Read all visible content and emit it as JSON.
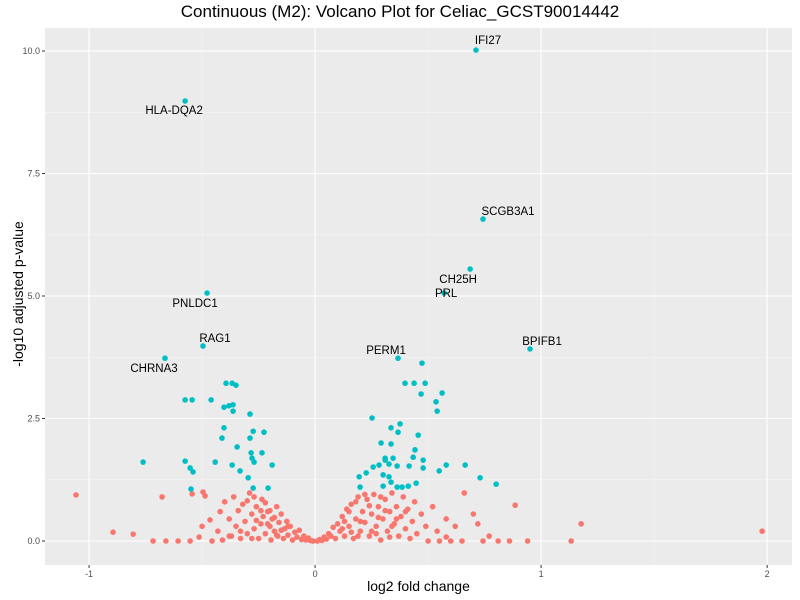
{
  "chart_data": {
    "type": "scatter",
    "title": "Continuous (M2): Volcano Plot for Celiac_GCST90014442",
    "xlabel": "log2 fold change",
    "ylabel": "-log10 adjusted p-value",
    "xlim": [
      -1.195,
      2.11
    ],
    "ylim": [
      -0.49,
      10.47
    ],
    "xticks": [
      -1,
      0,
      1,
      2
    ],
    "xtick_labels": [
      "-1",
      "0",
      "1",
      "2"
    ],
    "yticks": [
      0,
      2.5,
      5,
      7.5,
      10
    ],
    "ytick_labels": [
      "0.0",
      "2.5",
      "5.0",
      "7.5",
      "10.0"
    ],
    "grid": true,
    "colors": {
      "significant": "#00BFC4",
      "not_significant": "#F8766D",
      "panel": "#EBEBEB"
    },
    "labeled_genes": [
      {
        "gene": "IFI27",
        "x": 0.712,
        "y": 10.02
      },
      {
        "gene": "HLA-DQA2",
        "x": -0.575,
        "y": 8.98
      },
      {
        "gene": "SCGB3A1",
        "x": 0.743,
        "y": 6.57
      },
      {
        "gene": "CH25H",
        "x": 0.686,
        "y": 5.55
      },
      {
        "gene": "PRL",
        "x": 0.571,
        "y": 5.06
      },
      {
        "gene": "PNLDC1",
        "x": -0.478,
        "y": 5.06
      },
      {
        "gene": "RAG1",
        "x": -0.496,
        "y": 3.98
      },
      {
        "gene": "BPIFB1",
        "x": 0.951,
        "y": 3.92
      },
      {
        "gene": "PERM1",
        "x": 0.367,
        "y": 3.73
      },
      {
        "gene": "CHRNA3",
        "x": -0.664,
        "y": 3.73
      }
    ],
    "significant_points": [
      [
        -0.394,
        3.22
      ],
      [
        -0.367,
        3.22
      ],
      [
        -0.35,
        3.18
      ],
      [
        -0.575,
        2.88
      ],
      [
        -0.544,
        2.88
      ],
      [
        -0.46,
        2.88
      ],
      [
        -0.403,
        2.73
      ],
      [
        -0.381,
        2.76
      ],
      [
        -0.363,
        2.78
      ],
      [
        -0.363,
        2.65
      ],
      [
        -0.288,
        2.59
      ],
      [
        -0.403,
        2.31
      ],
      [
        -0.274,
        2.24
      ],
      [
        -0.226,
        2.22
      ],
      [
        -0.412,
        2.1
      ],
      [
        -0.288,
        2.1
      ],
      [
        -0.345,
        1.92
      ],
      [
        -0.283,
        1.8
      ],
      [
        -0.235,
        1.8
      ],
      [
        -0.442,
        1.61
      ],
      [
        -0.279,
        1.69
      ],
      [
        -0.27,
        1.61
      ],
      [
        -0.367,
        1.55
      ],
      [
        -0.332,
        1.43
      ],
      [
        -0.19,
        1.55
      ],
      [
        -0.296,
        1.29
      ],
      [
        -0.761,
        1.61
      ],
      [
        -0.575,
        1.63
      ],
      [
        -0.553,
        1.49
      ],
      [
        -0.54,
        1.41
      ],
      [
        -0.549,
        1.06
      ],
      [
        -0.274,
        1.08
      ],
      [
        -0.208,
        1.08
      ],
      [
        0.473,
        3.63
      ],
      [
        0.398,
        3.22
      ],
      [
        0.438,
        3.22
      ],
      [
        0.487,
        3.22
      ],
      [
        0.469,
        3.0
      ],
      [
        0.562,
        3.02
      ],
      [
        0.535,
        2.84
      ],
      [
        0.54,
        2.65
      ],
      [
        0.252,
        2.51
      ],
      [
        0.336,
        2.31
      ],
      [
        0.376,
        2.39
      ],
      [
        0.367,
        2.22
      ],
      [
        0.456,
        2.16
      ],
      [
        0.292,
        2.0
      ],
      [
        0.336,
        1.98
      ],
      [
        0.442,
        1.86
      ],
      [
        0.31,
        1.69
      ],
      [
        0.345,
        1.69
      ],
      [
        0.434,
        1.71
      ],
      [
        0.257,
        1.51
      ],
      [
        0.31,
        1.65
      ],
      [
        0.327,
        1.57
      ],
      [
        0.363,
        1.53
      ],
      [
        0.416,
        1.53
      ],
      [
        0.478,
        1.65
      ],
      [
        0.478,
        1.49
      ],
      [
        0.195,
        1.31
      ],
      [
        0.226,
        1.39
      ],
      [
        0.283,
        1.55
      ],
      [
        0.58,
        1.55
      ],
      [
        0.549,
        1.43
      ],
      [
        0.301,
        1.35
      ],
      [
        0.327,
        1.31
      ],
      [
        0.336,
        1.2
      ],
      [
        0.199,
        1.1
      ],
      [
        0.73,
        1.29
      ],
      [
        0.447,
        1.18
      ],
      [
        0.801,
        1.16
      ],
      [
        0.363,
        1.1
      ],
      [
        0.385,
        1.1
      ],
      [
        0.301,
        1.12
      ],
      [
        0.412,
        1.12
      ],
      [
        0.664,
        1.55
      ]
    ],
    "nonsignificant_points": [
      [
        -1.058,
        0.94
      ],
      [
        -0.894,
        0.18
      ],
      [
        -0.805,
        0.14
      ],
      [
        -0.717,
        0
      ],
      [
        -0.677,
        0.9
      ],
      [
        -0.66,
        0
      ],
      [
        -0.606,
        0
      ],
      [
        -0.553,
        0
      ],
      [
        -0.513,
        0.08
      ],
      [
        -0.456,
        0
      ],
      [
        -0.487,
        0.92
      ],
      [
        -0.544,
        0.96
      ],
      [
        -0.496,
        1.0
      ],
      [
        -0.465,
        0.43
      ],
      [
        -0.5,
        0.3
      ],
      [
        -0.42,
        0.6
      ],
      [
        -0.43,
        0.2
      ],
      [
        -0.41,
        0.02
      ],
      [
        -0.4,
        0.8
      ],
      [
        -0.38,
        0.45
      ],
      [
        -0.37,
        0.1
      ],
      [
        -0.36,
        0.9
      ],
      [
        -0.35,
        0.3
      ],
      [
        -0.34,
        0.62
      ],
      [
        -0.33,
        0.05
      ],
      [
        -0.32,
        0.75
      ],
      [
        -0.31,
        0.4
      ],
      [
        -0.3,
        0.15
      ],
      [
        -0.29,
        0.98
      ],
      [
        -0.28,
        0.55
      ],
      [
        -0.27,
        0.25
      ],
      [
        -0.26,
        0.7
      ],
      [
        -0.25,
        0.05
      ],
      [
        -0.24,
        0.35
      ],
      [
        -0.235,
        0.85
      ],
      [
        -0.23,
        0.5
      ],
      [
        -0.22,
        0.15
      ],
      [
        -0.21,
        0.6
      ],
      [
        -0.2,
        0.3
      ],
      [
        -0.195,
        0.02
      ],
      [
        -0.19,
        0.45
      ],
      [
        -0.18,
        0.2
      ],
      [
        -0.17,
        0.7
      ],
      [
        -0.165,
        0.1
      ],
      [
        -0.16,
        0.38
      ],
      [
        -0.15,
        0.55
      ],
      [
        -0.14,
        0.05
      ],
      [
        -0.135,
        0.25
      ],
      [
        -0.125,
        0.4
      ],
      [
        -0.12,
        0.12
      ],
      [
        -0.11,
        0.3
      ],
      [
        -0.1,
        0.02
      ],
      [
        -0.09,
        0.18
      ],
      [
        -0.08,
        0.08
      ],
      [
        -0.07,
        0.22
      ],
      [
        -0.06,
        0.03
      ],
      [
        -0.05,
        0.1
      ],
      [
        -0.04,
        0.02
      ],
      [
        -0.03,
        0.06
      ],
      [
        -0.02,
        0.01
      ],
      [
        -0.01,
        0.0
      ],
      [
        -0.3,
        0.82
      ],
      [
        -0.27,
        0.9
      ],
      [
        -0.33,
        0.2
      ],
      [
        -0.26,
        0.42
      ],
      [
        -0.22,
        0.78
      ],
      [
        -0.2,
        0.62
      ],
      [
        -0.18,
        0.48
      ],
      [
        -0.15,
        0.22
      ],
      [
        -0.12,
        0.3
      ],
      [
        -0.38,
        0.1
      ],
      [
        -0.28,
        0.05
      ],
      [
        -0.24,
        0.62
      ],
      [
        -0.21,
        0.35
      ],
      [
        -0.17,
        0.12
      ],
      [
        0.01,
        0.0
      ],
      [
        0.02,
        0.03
      ],
      [
        0.03,
        0.01
      ],
      [
        0.04,
        0.08
      ],
      [
        0.05,
        0.04
      ],
      [
        0.06,
        0.15
      ],
      [
        0.07,
        0.1
      ],
      [
        0.08,
        0.28
      ],
      [
        0.09,
        0.05
      ],
      [
        0.1,
        0.35
      ],
      [
        0.11,
        0.2
      ],
      [
        0.12,
        0.5
      ],
      [
        0.13,
        0.1
      ],
      [
        0.14,
        0.65
      ],
      [
        0.15,
        0.3
      ],
      [
        0.16,
        0.75
      ],
      [
        0.17,
        0.05
      ],
      [
        0.18,
        0.45
      ],
      [
        0.19,
        0.9
      ],
      [
        0.2,
        0.2
      ],
      [
        0.21,
        0.6
      ],
      [
        0.22,
        0.38
      ],
      [
        0.23,
        0.85
      ],
      [
        0.24,
        0.1
      ],
      [
        0.25,
        0.55
      ],
      [
        0.26,
        0.95
      ],
      [
        0.27,
        0.3
      ],
      [
        0.28,
        0.7
      ],
      [
        0.29,
        0.02
      ],
      [
        0.3,
        0.45
      ],
      [
        0.31,
        0.85
      ],
      [
        0.32,
        0.2
      ],
      [
        0.33,
        0.6
      ],
      [
        0.34,
        0.98
      ],
      [
        0.35,
        0.35
      ],
      [
        0.36,
        0.7
      ],
      [
        0.37,
        0.1
      ],
      [
        0.38,
        0.5
      ],
      [
        0.39,
        0.9
      ],
      [
        0.4,
        0.25
      ],
      [
        0.41,
        0.65
      ],
      [
        0.42,
        0.05
      ],
      [
        0.43,
        0.4
      ],
      [
        0.44,
        0.8
      ],
      [
        0.45,
        0.15
      ],
      [
        0.47,
        0.55
      ],
      [
        0.49,
        0.3
      ],
      [
        0.5,
        0.0
      ],
      [
        0.52,
        0.7
      ],
      [
        0.55,
        0.0
      ],
      [
        0.58,
        0.08
      ],
      [
        0.6,
        0.0
      ],
      [
        0.65,
        0.0
      ],
      [
        0.66,
        0.98
      ],
      [
        0.7,
        0.55
      ],
      [
        0.72,
        0.35
      ],
      [
        0.743,
        0.0
      ],
      [
        0.77,
        0.1
      ],
      [
        0.81,
        0.0
      ],
      [
        0.86,
        0.0
      ],
      [
        0.885,
        0.73
      ],
      [
        0.94,
        0.0
      ],
      [
        1.133,
        0.0
      ],
      [
        1.177,
        0.35
      ],
      [
        1.978,
        0.2
      ],
      [
        0.58,
        0.45
      ],
      [
        0.62,
        0.3
      ],
      [
        0.54,
        0.2
      ],
      [
        0.15,
        0.6
      ],
      [
        0.18,
        0.8
      ],
      [
        0.22,
        0.95
      ],
      [
        0.25,
        0.2
      ],
      [
        0.28,
        0.48
      ],
      [
        0.31,
        0.62
      ],
      [
        0.34,
        0.3
      ],
      [
        0.2,
        0.4
      ],
      [
        0.12,
        0.25
      ],
      [
        0.16,
        0.18
      ],
      [
        0.24,
        0.72
      ],
      [
        0.29,
        0.9
      ],
      [
        0.33,
        0.08
      ],
      [
        0.36,
        0.45
      ],
      [
        0.4,
        0.6
      ],
      [
        0.27,
        0.15
      ],
      [
        0.19,
        0.1
      ],
      [
        0.13,
        0.4
      ]
    ]
  }
}
